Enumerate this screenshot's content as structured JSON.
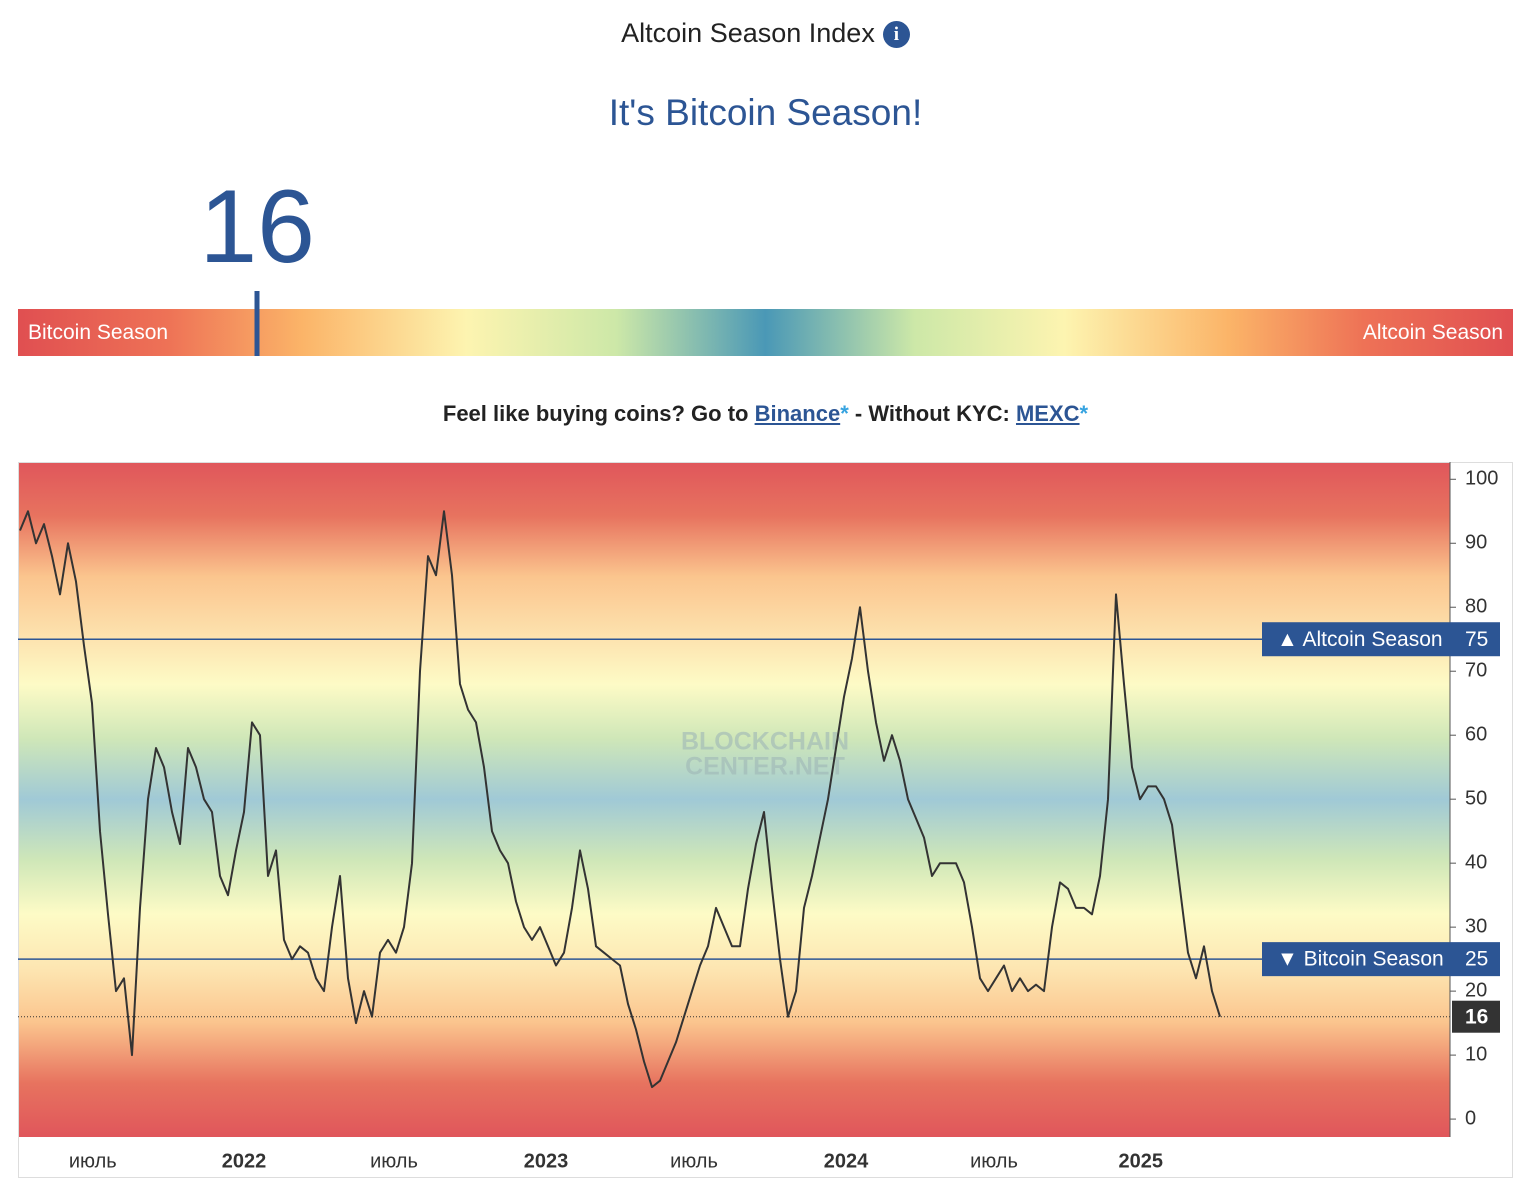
{
  "header": {
    "title": "Altcoin Season Index",
    "status": "It's Bitcoin Season!"
  },
  "gauge": {
    "value": 16,
    "lim": [
      0,
      100
    ],
    "left_label": "Bitcoin Season",
    "right_label": "Altcoin Season"
  },
  "promo": {
    "lead": "Feel like buying coins? Go to",
    "link1": "Binance",
    "star1": "*",
    "middle": "- Without KYC:",
    "link2": "MEXC",
    "star2": "*"
  },
  "chart_data": {
    "type": "line",
    "watermark": [
      "BLOCKCHAIN",
      "CENTER.NET"
    ],
    "series": [
      {
        "name": "Altcoin Season Index",
        "color": "#333333",
        "values": [
          92,
          95,
          90,
          93,
          88,
          82,
          90,
          84,
          74,
          65,
          45,
          32,
          20,
          22,
          10,
          33,
          50,
          58,
          55,
          48,
          43,
          58,
          55,
          50,
          48,
          38,
          35,
          42,
          48,
          62,
          60,
          38,
          42,
          28,
          25,
          27,
          26,
          22,
          20,
          30,
          38,
          22,
          15,
          20,
          16,
          26,
          28,
          26,
          30,
          40,
          70,
          88,
          85,
          95,
          85,
          68,
          64,
          62,
          55,
          45,
          42,
          40,
          34,
          30,
          28,
          30,
          27,
          24,
          26,
          33,
          42,
          36,
          27,
          26,
          25,
          24,
          18,
          14,
          9,
          5,
          6,
          9,
          12,
          16,
          20,
          24,
          27,
          33,
          30,
          27,
          27,
          36,
          43,
          48,
          36,
          25,
          16,
          20,
          33,
          38,
          44,
          50,
          58,
          66,
          72,
          80,
          70,
          62,
          56,
          60,
          56,
          50,
          47,
          44,
          38,
          40,
          40,
          40,
          37,
          30,
          22,
          20,
          22,
          24,
          20,
          22,
          20,
          21,
          20,
          30,
          37,
          36,
          33,
          33,
          32,
          38,
          50,
          82,
          68,
          55,
          50,
          52,
          52,
          50,
          46,
          36,
          26,
          22,
          27,
          20,
          16
        ]
      }
    ],
    "current_value": 16,
    "thresholds": [
      {
        "label": "▲ Altcoin Season",
        "value": 75
      },
      {
        "label": "▼ Bitcoin Season",
        "value": 25
      }
    ],
    "xlim": [
      -0.25,
      178.75
    ],
    "xticks": [
      {
        "value": 9.1,
        "label": "июль"
      },
      {
        "value": 28,
        "label": "2022"
      },
      {
        "value": 46.75,
        "label": "июль"
      },
      {
        "value": 65.75,
        "label": "2023"
      },
      {
        "value": 84.25,
        "label": "июль"
      },
      {
        "value": 103.25,
        "label": "2024"
      },
      {
        "value": 121.75,
        "label": "июль"
      },
      {
        "value": 140.1,
        "label": "2025"
      }
    ],
    "ylim": [
      -2.8,
      102.7
    ],
    "yticks": [
      0,
      10,
      20,
      30,
      40,
      50,
      60,
      70,
      80,
      90,
      100
    ]
  }
}
